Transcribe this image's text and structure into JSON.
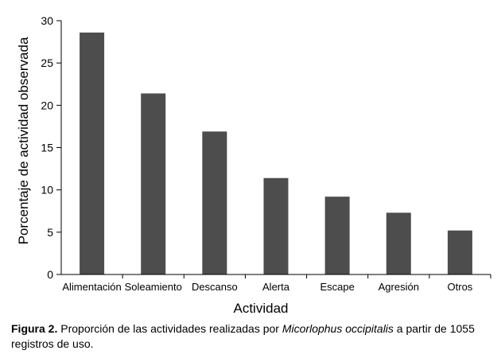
{
  "chart_data": {
    "type": "bar",
    "categories": [
      "Alimentación",
      "Soleamiento",
      "Descanso",
      "Alerta",
      "Escape",
      "Agresión",
      "Otros"
    ],
    "values": [
      28.6,
      21.4,
      16.9,
      11.4,
      9.2,
      7.3,
      5.2
    ],
    "title": "",
    "xlabel": "Actividad",
    "ylabel": "Porcentaje de actividad observada",
    "ylim": [
      0,
      30
    ],
    "yticks": [
      0,
      5,
      10,
      15,
      20,
      25,
      30
    ],
    "bar_color": "#4d4d4d",
    "grid": false,
    "legend": "none"
  },
  "caption": {
    "label": "Figura 2.",
    "text_before": " Proporción de las actividades realizadas  por ",
    "species": "Micorlophus occipitalis",
    "text_after": " a partir de 1055 registros de uso."
  }
}
